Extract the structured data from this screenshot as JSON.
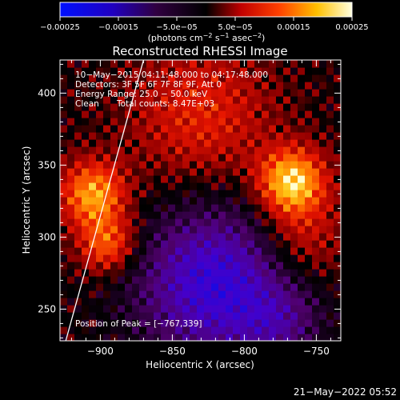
{
  "chart_data": {
    "type": "heatmap",
    "title": "Reconstructed RHESSI Image",
    "xlabel": "Heliocentric X (arcsec)",
    "ylabel": "Heliocentric Y (arcsec)",
    "xlim": [
      -928,
      -733
    ],
    "ylim": [
      228,
      423
    ],
    "x_ticks": [
      -900,
      -850,
      -800,
      -750
    ],
    "y_ticks": [
      250,
      300,
      350,
      400
    ],
    "x_tick_labels": [
      "−900",
      "−850",
      "−800",
      "−750"
    ],
    "y_tick_labels": [
      "250",
      "300",
      "350",
      "400"
    ],
    "colorbar": {
      "range": [
        -0.00025,
        0.00025
      ],
      "ticks": [
        -0.00025,
        -0.00015,
        -5e-05,
        5e-05,
        0.00015,
        0.00025
      ],
      "tick_labels": [
        "−0.00025",
        "−0.00015",
        "−5.0e−05",
        "5.0e−05",
        "0.00015",
        "0.00025"
      ],
      "unit_prefix": "(photons cm",
      "unit_exp1": "−2",
      "unit_mid": " s",
      "unit_exp2": "−1",
      "unit_mid2": " asec",
      "unit_exp3": "−2",
      "unit_suffix": ")"
    },
    "annotations": {
      "time_range": "10−May−2015 04:11:48.000 to 04:17:48.000",
      "detectors": "Detectors: 3F 5F 6F 7F 8F 9F, Att 0",
      "energy_range": "Energy Range: 25.0 − 50.0 keV",
      "clean_label": "Clean",
      "total_counts": "Total counts: 8.47E+03",
      "peak_position": "Position of Peak = [−767,339]"
    },
    "peak": [
      -767,
      339
    ],
    "limb_line": {
      "x": [
        -924,
        -870
      ],
      "y": [
        228,
        423
      ]
    },
    "colors": {
      "background": "#000000",
      "limb": "#ffffff"
    }
  },
  "footer": {
    "date": "21−May−2022 05:52"
  }
}
